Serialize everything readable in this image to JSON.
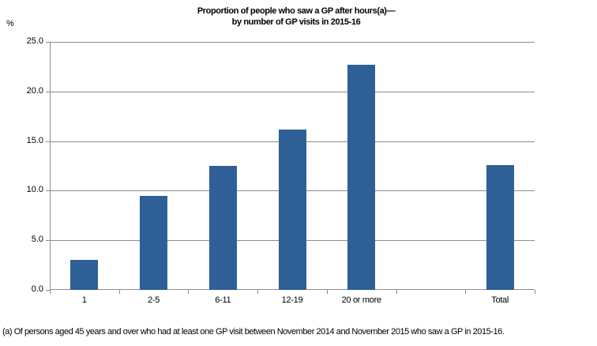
{
  "chart_data": {
    "type": "bar",
    "title": "Proportion of people who saw a GP after hours(a)— by number of GP visits in 2015-16",
    "title_lines": [
      "Proportion of people who saw a GP after hours(a)—",
      "by number of GP visits in 2015-16"
    ],
    "xlabel": "",
    "ylabel": "%",
    "ylim": [
      0,
      25
    ],
    "yticks": [
      "0.0",
      "5.0",
      "10.0",
      "15.0",
      "20.0",
      "25.0"
    ],
    "grid": true,
    "legend": null,
    "categories": [
      "1",
      "2-5",
      "6-11",
      "12-19",
      "20 or more",
      "",
      "Total"
    ],
    "values": [
      3.0,
      9.5,
      12.5,
      16.2,
      22.7,
      null,
      12.6
    ],
    "bar_color": "#2E5F96",
    "footnote": "(a) Of persons aged 45 years and over who had at least one GP visit between November 2014 and November 2015 who saw a GP in 2015-16."
  }
}
